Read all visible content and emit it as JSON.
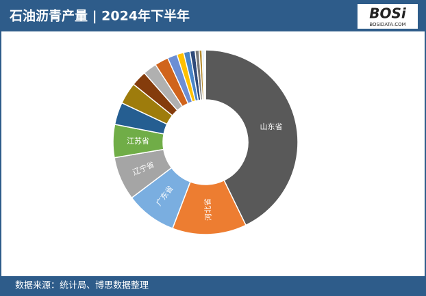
{
  "chart_data": {
    "type": "donut",
    "title": "石油沥青产量 | 2024年下半年",
    "source": "数据来源：统计局、博思数据整理",
    "logo": {
      "text": "BOSi",
      "subtext": "BOSIDATA.COM"
    },
    "categories": [
      "山东省",
      "河北省",
      "广东省",
      "辽宁省",
      "江苏省",
      null,
      null,
      null,
      null,
      null,
      null,
      null,
      null,
      null,
      null,
      null,
      null,
      null,
      null
    ],
    "values": [
      42.8,
      13,
      8.9,
      7.6,
      5.8,
      3.9,
      3.8,
      2.7,
      2.4,
      2.4,
      1.7,
      1.2,
      1.1,
      0.9,
      0.7,
      0.5,
      0.3,
      0.2,
      0.1
    ],
    "colors": [
      "#595959",
      "#ed7d31",
      "#7aaee0",
      "#a5a5a5",
      "#70ad47",
      "#255e91",
      "#9e7c0c",
      "#843c0c",
      "#b0b0b0",
      "#d0641c",
      "#6c8ed4",
      "#ffc000",
      "#4a86c8",
      "#2f4a7a",
      "#7a7a7a",
      "#b58a2c",
      "#9dc3e6",
      "#c9c9c9",
      "#e2e2e2"
    ]
  }
}
